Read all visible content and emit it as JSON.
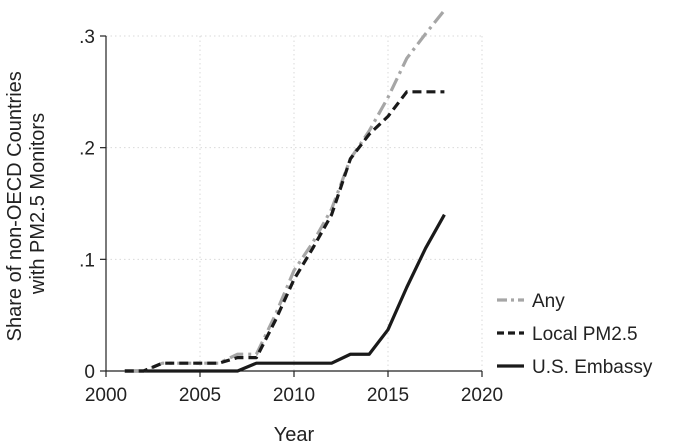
{
  "chart_data": {
    "type": "line",
    "title": "",
    "xlabel": "Year",
    "ylabel_lines": [
      "Share of non-OECD Countries",
      "with PM2.5 Monitors"
    ],
    "xlim": [
      2000,
      2020
    ],
    "ylim": [
      0,
      0.3
    ],
    "x_ticks": [
      {
        "value": 2000,
        "label": "2000"
      },
      {
        "value": 2005,
        "label": "2005"
      },
      {
        "value": 2010,
        "label": "2010"
      },
      {
        "value": 2015,
        "label": "2015"
      },
      {
        "value": 2020,
        "label": "2020"
      }
    ],
    "y_ticks": [
      {
        "value": 0,
        "label": "0"
      },
      {
        "value": 0.1,
        "label": ".1"
      },
      {
        "value": 0.2,
        "label": ".2"
      },
      {
        "value": 0.3,
        "label": ".3"
      }
    ],
    "grid": true,
    "legend": "right",
    "x": [
      2001,
      2002,
      2003,
      2004,
      2005,
      2006,
      2007,
      2008,
      2009,
      2010,
      2011,
      2012,
      2013,
      2014,
      2015,
      2016,
      2017,
      2018
    ],
    "series": [
      {
        "name": "Any",
        "color": "#a6a6a6",
        "dash": "dashdot",
        "values": [
          0,
          0,
          0.007,
          0.007,
          0.007,
          0.007,
          0.015,
          0.015,
          0.05,
          0.09,
          0.115,
          0.145,
          0.19,
          0.215,
          0.245,
          0.28,
          0.302,
          0.323
        ]
      },
      {
        "name": "Local PM2.5",
        "color": "#1a1a1a",
        "dash": "dash",
        "values": [
          0,
          0,
          0.007,
          0.007,
          0.007,
          0.007,
          0.012,
          0.012,
          0.045,
          0.082,
          0.11,
          0.14,
          0.19,
          0.212,
          0.228,
          0.25,
          0.25,
          0.25
        ]
      },
      {
        "name": "U.S. Embassy",
        "color": "#1a1a1a",
        "dash": "solid",
        "values": [
          0,
          0,
          0,
          0,
          0,
          0,
          0,
          0.007,
          0.007,
          0.007,
          0.007,
          0.007,
          0.015,
          0.015,
          0.037,
          0.075,
          0.11,
          0.14
        ]
      }
    ]
  }
}
